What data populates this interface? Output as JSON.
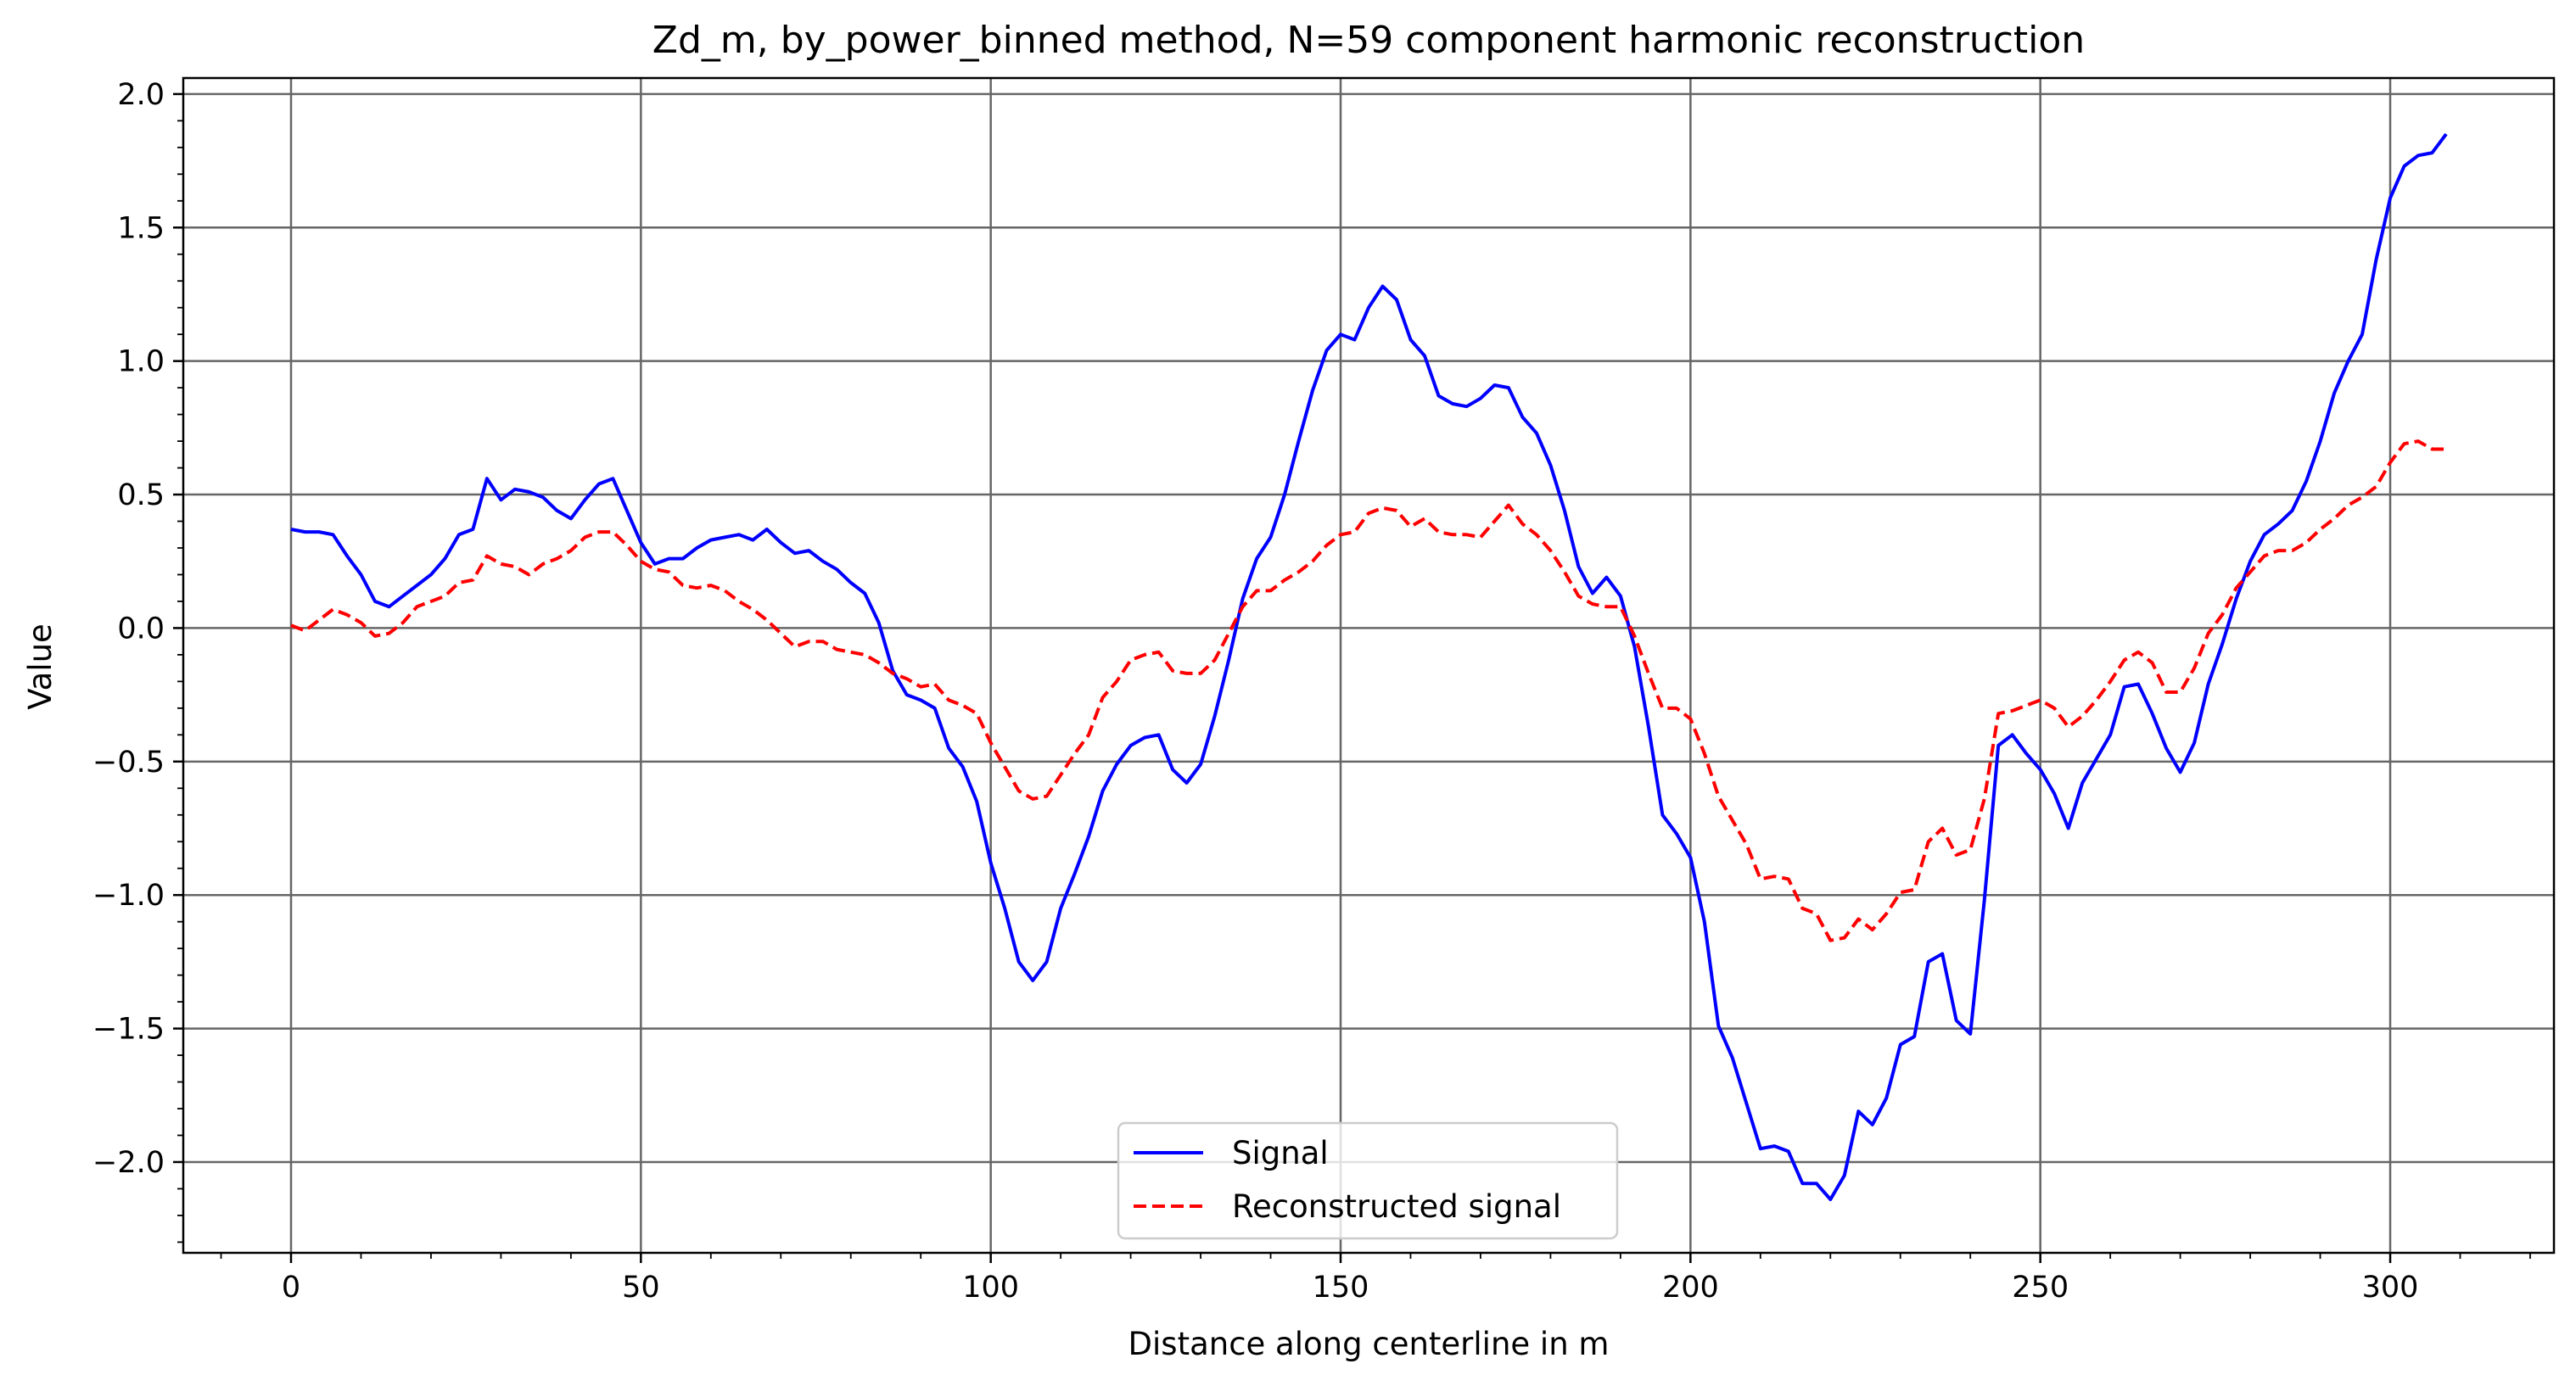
{
  "chart_data": {
    "type": "line",
    "title": "Zd_m, by_power_binned method, N=59 component harmonic reconstruction",
    "xlabel": "Distance along centerline in m",
    "ylabel": "Value",
    "xlim": [
      -15.4,
      323.4
    ],
    "ylim": [
      -2.34,
      2.06
    ],
    "x_ticks": [
      0,
      50,
      100,
      150,
      200,
      250,
      300
    ],
    "x_tick_labels": [
      "0",
      "50",
      "100",
      "150",
      "200",
      "250",
      "300"
    ],
    "y_ticks": [
      -2.0,
      -1.5,
      -1.0,
      -0.5,
      0.0,
      0.5,
      1.0,
      1.5,
      2.0
    ],
    "y_tick_labels": [
      "−2.0",
      "−1.5",
      "−1.0",
      "−0.5",
      "0.0",
      "0.5",
      "1.0",
      "1.5",
      "2.0"
    ],
    "grid": true,
    "legend_position": "bottom-center",
    "series": [
      {
        "name": "Signal",
        "color": "#0000ff",
        "style": "solid",
        "x": [
          0,
          2,
          4,
          6,
          8,
          10,
          12,
          14,
          16,
          18,
          20,
          22,
          24,
          26,
          28,
          30,
          32,
          34,
          36,
          38,
          40,
          42,
          44,
          46,
          48,
          50,
          52,
          54,
          56,
          58,
          60,
          62,
          64,
          66,
          68,
          70,
          72,
          74,
          76,
          78,
          80,
          82,
          84,
          86,
          88,
          90,
          92,
          94,
          96,
          98,
          100,
          102,
          104,
          106,
          108,
          110,
          112,
          114,
          116,
          118,
          120,
          122,
          124,
          126,
          128,
          130,
          132,
          134,
          136,
          138,
          140,
          142,
          144,
          146,
          148,
          150,
          152,
          154,
          156,
          158,
          160,
          162,
          164,
          166,
          168,
          170,
          172,
          174,
          176,
          178,
          180,
          182,
          184,
          186,
          188,
          190,
          192,
          194,
          196,
          198,
          200,
          202,
          204,
          206,
          208,
          210,
          212,
          214,
          216,
          218,
          220,
          222,
          224,
          226,
          228,
          230,
          232,
          234,
          236,
          238,
          240,
          242,
          244,
          246,
          248,
          250,
          252,
          254,
          256,
          258,
          260,
          262,
          264,
          266,
          268,
          270,
          272,
          274,
          276,
          278,
          280,
          282,
          284,
          286,
          288,
          290,
          292,
          294,
          296,
          298,
          300,
          302,
          304,
          306,
          308
        ],
        "y": [
          0.37,
          0.36,
          0.36,
          0.35,
          0.27,
          0.2,
          0.1,
          0.08,
          0.12,
          0.16,
          0.2,
          0.26,
          0.35,
          0.37,
          0.56,
          0.48,
          0.52,
          0.51,
          0.49,
          0.44,
          0.41,
          0.48,
          0.54,
          0.56,
          0.44,
          0.32,
          0.24,
          0.26,
          0.26,
          0.3,
          0.33,
          0.34,
          0.35,
          0.33,
          0.37,
          0.32,
          0.28,
          0.29,
          0.25,
          0.22,
          0.17,
          0.13,
          0.02,
          -0.16,
          -0.25,
          -0.27,
          -0.3,
          -0.45,
          -0.52,
          -0.65,
          -0.88,
          -1.05,
          -1.25,
          -1.32,
          -1.25,
          -1.05,
          -0.92,
          -0.78,
          -0.61,
          -0.51,
          -0.44,
          -0.41,
          -0.4,
          -0.53,
          -0.58,
          -0.51,
          -0.33,
          -0.12,
          0.11,
          0.26,
          0.34,
          0.5,
          0.7,
          0.89,
          1.04,
          1.1,
          1.08,
          1.2,
          1.28,
          1.23,
          1.08,
          1.02,
          0.87,
          0.84,
          0.83,
          0.86,
          0.91,
          0.9,
          0.79,
          0.73,
          0.61,
          0.44,
          0.23,
          0.13,
          0.19,
          0.12,
          -0.07,
          -0.37,
          -0.7,
          -0.77,
          -0.86,
          -1.1,
          -1.49,
          -1.61,
          -1.78,
          -1.95,
          -1.94,
          -1.96,
          -2.08,
          -2.08,
          -2.14,
          -2.05,
          -1.81,
          -1.86,
          -1.76,
          -1.56,
          -1.53,
          -1.25,
          -1.22,
          -1.47,
          -1.52,
          -1.02,
          -0.44,
          -0.4,
          -0.47,
          -0.53,
          -0.62,
          -0.75,
          -0.58,
          -0.49,
          -0.4,
          -0.22,
          -0.21,
          -0.32,
          -0.45,
          -0.54,
          -0.43,
          -0.21,
          -0.06,
          0.11,
          0.25,
          0.35,
          0.39,
          0.44,
          0.55,
          0.7,
          0.88,
          1.0,
          1.1,
          1.38,
          1.61,
          1.73,
          1.77,
          1.78,
          1.85
        ]
      },
      {
        "name": "Reconstructed signal",
        "color": "#ff0000",
        "style": "dashed",
        "x": [
          0,
          2,
          4,
          6,
          8,
          10,
          12,
          14,
          16,
          18,
          20,
          22,
          24,
          26,
          28,
          30,
          32,
          34,
          36,
          38,
          40,
          42,
          44,
          46,
          48,
          50,
          52,
          54,
          56,
          58,
          60,
          62,
          64,
          66,
          68,
          70,
          72,
          74,
          76,
          78,
          80,
          82,
          84,
          86,
          88,
          90,
          92,
          94,
          96,
          98,
          100,
          102,
          104,
          106,
          108,
          110,
          112,
          114,
          116,
          118,
          120,
          122,
          124,
          126,
          128,
          130,
          132,
          134,
          136,
          138,
          140,
          142,
          144,
          146,
          148,
          150,
          152,
          154,
          156,
          158,
          160,
          162,
          164,
          166,
          168,
          170,
          172,
          174,
          176,
          178,
          180,
          182,
          184,
          186,
          188,
          190,
          192,
          194,
          196,
          198,
          200,
          202,
          204,
          206,
          208,
          210,
          212,
          214,
          216,
          218,
          220,
          222,
          224,
          226,
          228,
          230,
          232,
          234,
          236,
          238,
          240,
          242,
          244,
          246,
          248,
          250,
          252,
          254,
          256,
          258,
          260,
          262,
          264,
          266,
          268,
          270,
          272,
          274,
          276,
          278,
          280,
          282,
          284,
          286,
          288,
          290,
          292,
          294,
          296,
          298,
          300,
          302,
          304,
          306,
          308
        ],
        "y": [
          0.01,
          -0.01,
          0.03,
          0.07,
          0.05,
          0.02,
          -0.03,
          -0.02,
          0.02,
          0.08,
          0.1,
          0.12,
          0.17,
          0.18,
          0.27,
          0.24,
          0.23,
          0.2,
          0.24,
          0.26,
          0.29,
          0.34,
          0.36,
          0.36,
          0.31,
          0.25,
          0.22,
          0.21,
          0.16,
          0.15,
          0.16,
          0.14,
          0.1,
          0.07,
          0.03,
          -0.02,
          -0.07,
          -0.05,
          -0.05,
          -0.08,
          -0.09,
          -0.1,
          -0.13,
          -0.17,
          -0.19,
          -0.22,
          -0.21,
          -0.27,
          -0.29,
          -0.32,
          -0.43,
          -0.52,
          -0.61,
          -0.64,
          -0.63,
          -0.55,
          -0.47,
          -0.4,
          -0.26,
          -0.2,
          -0.12,
          -0.1,
          -0.09,
          -0.16,
          -0.17,
          -0.17,
          -0.12,
          -0.02,
          0.08,
          0.14,
          0.14,
          0.18,
          0.21,
          0.25,
          0.31,
          0.35,
          0.36,
          0.43,
          0.45,
          0.44,
          0.38,
          0.41,
          0.36,
          0.35,
          0.35,
          0.34,
          0.4,
          0.46,
          0.39,
          0.35,
          0.29,
          0.21,
          0.12,
          0.09,
          0.08,
          0.08,
          -0.03,
          -0.17,
          -0.3,
          -0.3,
          -0.34,
          -0.47,
          -0.63,
          -0.72,
          -0.81,
          -0.94,
          -0.93,
          -0.94,
          -1.05,
          -1.07,
          -1.17,
          -1.16,
          -1.09,
          -1.13,
          -1.07,
          -0.99,
          -0.98,
          -0.8,
          -0.75,
          -0.85,
          -0.83,
          -0.64,
          -0.32,
          -0.31,
          -0.29,
          -0.27,
          -0.3,
          -0.37,
          -0.33,
          -0.27,
          -0.2,
          -0.12,
          -0.09,
          -0.13,
          -0.24,
          -0.24,
          -0.15,
          -0.02,
          0.05,
          0.15,
          0.21,
          0.27,
          0.29,
          0.29,
          0.32,
          0.37,
          0.41,
          0.46,
          0.49,
          0.53,
          0.62,
          0.69,
          0.7,
          0.67,
          0.67
        ]
      }
    ]
  }
}
